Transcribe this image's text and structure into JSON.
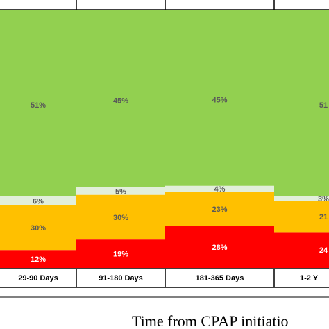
{
  "chart_data": {
    "type": "bar",
    "stacked": true,
    "categories": [
      "29-90 Days",
      "91-180 Days",
      "181-365 Days",
      "1-2 Y"
    ],
    "series": [
      {
        "values": [
          12,
          19,
          28,
          24
        ],
        "labels": [
          "12%",
          "19%",
          "28%",
          "24"
        ],
        "color": "#ff0000",
        "label_color": "#ffffff"
      },
      {
        "values": [
          30,
          30,
          23,
          21
        ],
        "labels": [
          "30%",
          "30%",
          "23%",
          "21"
        ],
        "color": "#ffc000",
        "label_color": "#595959"
      },
      {
        "values": [
          6,
          5,
          4,
          3
        ],
        "labels": [
          "6%",
          "5%",
          "4%",
          "3%"
        ],
        "color": "#e2efda",
        "label_color": "#595959"
      },
      {
        "values": [
          51,
          45,
          45,
          51
        ],
        "labels": [
          "51%",
          "45%",
          "45%",
          "51"
        ],
        "color": "#92d050",
        "label_color": "#595959"
      }
    ],
    "xlabel": "Time from CPAP initiatio",
    "ylim": [
      0,
      100
    ]
  }
}
